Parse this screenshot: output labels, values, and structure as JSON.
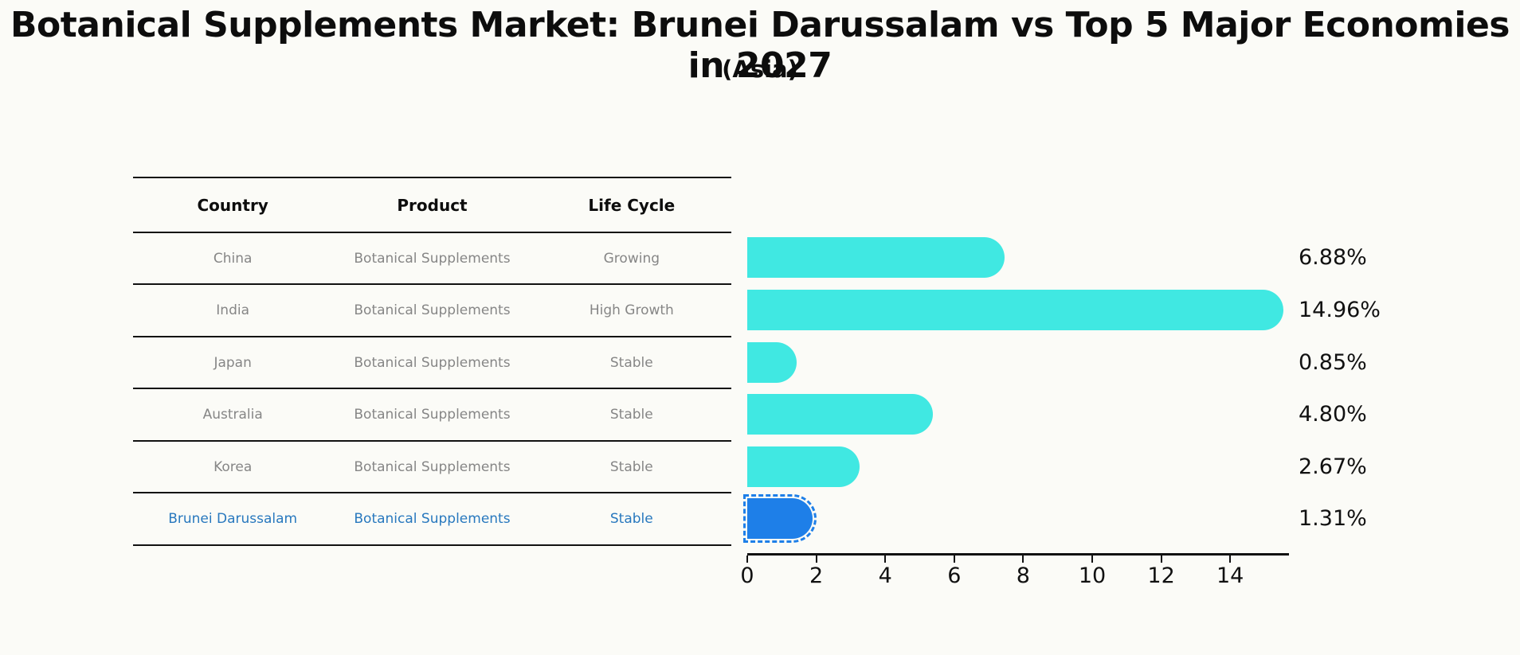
{
  "title": "Botanical Supplements Market: Brunei Darussalam vs Top 5 Major Economies in 2027",
  "subtitle": "(Asia)",
  "table": {
    "columns": [
      "Country",
      "Product",
      "Life Cycle"
    ],
    "rows": [
      {
        "country": "China",
        "product": "Botanical Supplements",
        "life_cycle": "Growing",
        "highlight": false
      },
      {
        "country": "India",
        "product": "Botanical Supplements",
        "life_cycle": "High Growth",
        "highlight": false
      },
      {
        "country": "Japan",
        "product": "Botanical Supplements",
        "life_cycle": "Stable",
        "highlight": false
      },
      {
        "country": "Australia",
        "product": "Botanical Supplements",
        "life_cycle": "Stable",
        "highlight": false
      },
      {
        "country": "Korea",
        "product": "Botanical Supplements",
        "life_cycle": "Stable",
        "highlight": false
      },
      {
        "country": "Brunei Darussalam",
        "product": "Botanical Supplements",
        "life_cycle": "Stable",
        "highlight": true
      }
    ]
  },
  "chart_data": {
    "type": "bar",
    "orientation": "horizontal",
    "title": "Botanical Supplements Market: Brunei Darussalam vs Top 5 Major Economies in 2027 (Asia)",
    "categories": [
      "China",
      "India",
      "Japan",
      "Australia",
      "Korea",
      "Brunei Darussalam"
    ],
    "values": [
      6.88,
      14.96,
      0.85,
      4.8,
      2.67,
      1.31
    ],
    "value_labels": [
      "6.88%",
      "14.96%",
      "0.85%",
      "4.80%",
      "2.67%",
      "1.31%"
    ],
    "x_ticks": [
      0,
      2,
      4,
      6,
      8,
      10,
      12,
      14
    ],
    "xlim": [
      0,
      15.7
    ],
    "grid": false,
    "legend": false,
    "highlight_index": 5
  },
  "colors": {
    "bar_color": "#40E8E2",
    "highlight_bar_color": "#1E7FE8",
    "highlight_text_color": "#2878BE",
    "row_text_color": "#868686",
    "axis_color": "#111111"
  }
}
